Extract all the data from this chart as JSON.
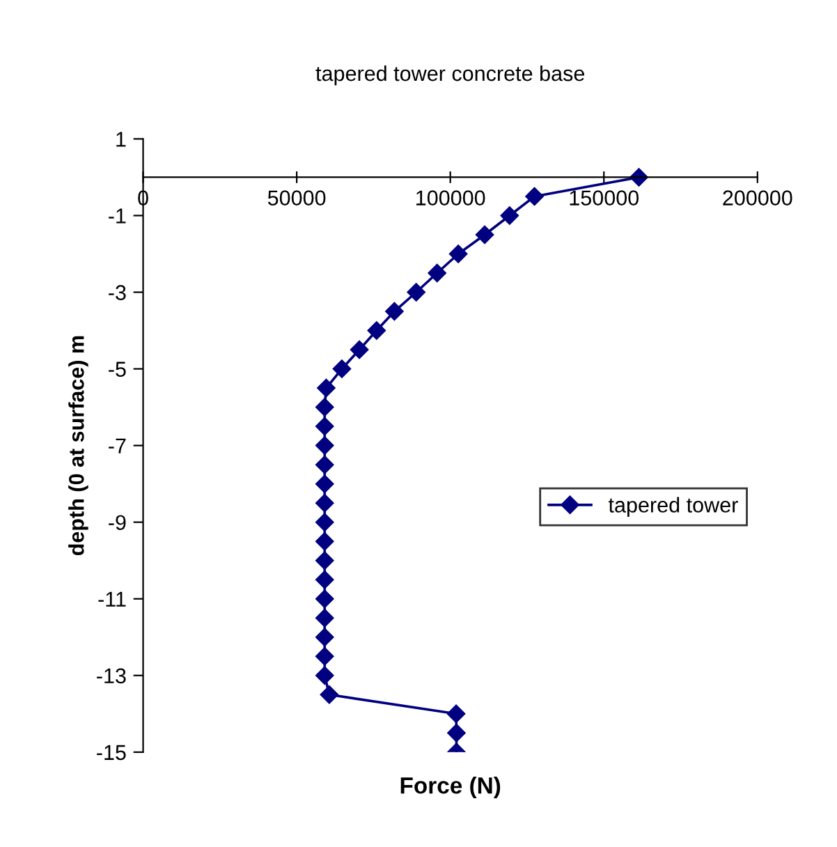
{
  "chart_data": {
    "type": "line",
    "title": "tapered tower concrete base",
    "xlabel": "Force (N)",
    "ylabel": "depth (0 at surface) m",
    "x": [
      161400,
      127400,
      119300,
      111200,
      102600,
      95700,
      88900,
      81800,
      76000,
      70400,
      64700,
      59600,
      59100,
      59100,
      59100,
      59100,
      59100,
      59100,
      59100,
      59100,
      59100,
      59100,
      59100,
      59100,
      59100,
      59100,
      59100,
      60600,
      101900,
      102000,
      102000
    ],
    "series": [
      {
        "name": "tapered tower",
        "color": "#000080",
        "values": [
          0,
          -0.5,
          -1,
          -1.5,
          -2,
          -2.5,
          -3,
          -3.5,
          -4,
          -4.5,
          -5,
          -5.5,
          -6,
          -6.5,
          -7,
          -7.5,
          -8,
          -8.5,
          -9,
          -9.5,
          -10,
          -10.5,
          -11,
          -11.5,
          -12,
          -12.5,
          -13,
          -13.5,
          -14,
          -14.5,
          -15
        ]
      }
    ],
    "xlim": [
      0,
      200000
    ],
    "xticks": [
      0,
      50000,
      100000,
      150000,
      200000
    ],
    "ylim": [
      -15,
      1
    ],
    "yticks": [
      -15,
      -13,
      -11,
      -9,
      -7,
      -5,
      -3,
      -1,
      1
    ],
    "marker": "diamond",
    "line_style": "solid",
    "legend": "right",
    "grid": false
  }
}
